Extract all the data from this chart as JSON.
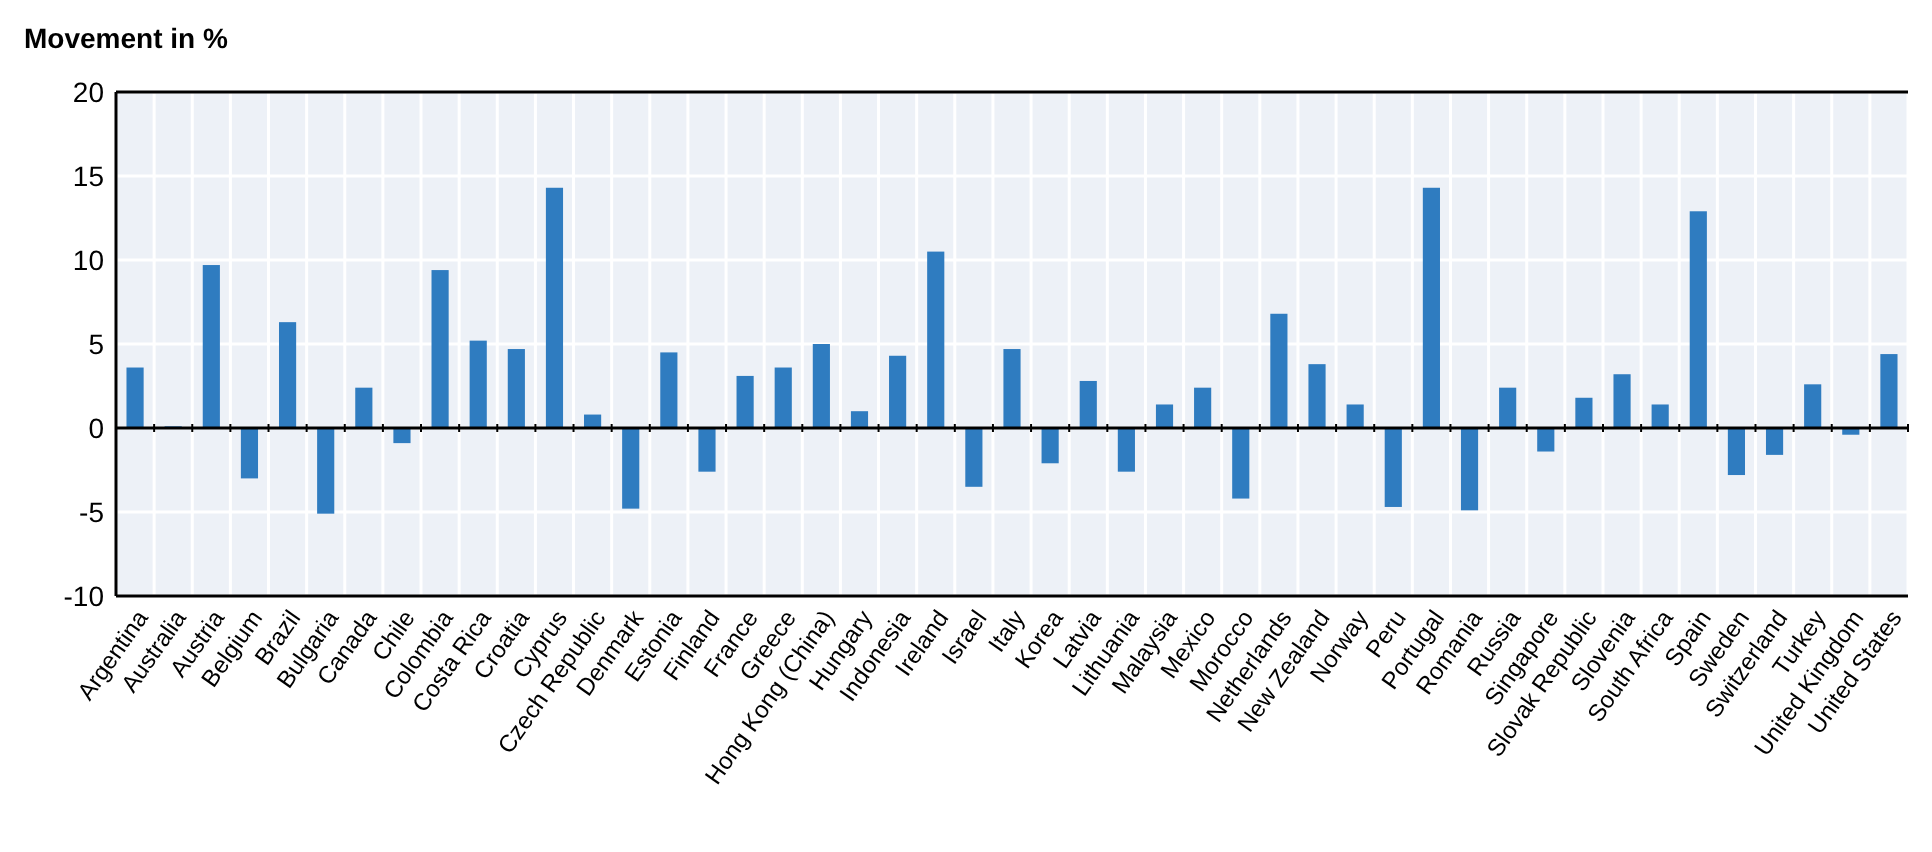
{
  "chart_data": {
    "type": "bar",
    "title": "Movement in %",
    "categories": [
      "Argentina",
      "Australia",
      "Austria",
      "Belgium",
      "Brazil",
      "Bulgaria",
      "Canada",
      "Chile",
      "Colombia",
      "Costa Rica",
      "Croatia",
      "Cyprus",
      "Czech Republic",
      "Denmark",
      "Estonia",
      "Finland",
      "France",
      "Greece",
      "Hong Kong (China)",
      "Hungary",
      "Indonesia",
      "Ireland",
      "Israel",
      "Italy",
      "Korea",
      "Latvia",
      "Lithuania",
      "Malaysia",
      "Mexico",
      "Morocco",
      "Netherlands",
      "New Zealand",
      "Norway",
      "Peru",
      "Portugal",
      "Romania",
      "Russia",
      "Singapore",
      "Slovak Republic",
      "Slovenia",
      "South Africa",
      "Spain",
      "Sweden",
      "Switzerland",
      "Turkey",
      "United Kingdom",
      "United States"
    ],
    "values": [
      3.6,
      0.1,
      9.7,
      -3,
      6.3,
      -5.1,
      2.4,
      -0.9,
      9.4,
      5.2,
      4.7,
      14.3,
      0.8,
      -4.8,
      4.5,
      -2.6,
      3.1,
      3.6,
      5,
      1,
      4.3,
      10.5,
      -3.5,
      4.7,
      -2.1,
      2.8,
      -2.6,
      1.4,
      2.4,
      -4.2,
      6.8,
      3.8,
      1.4,
      -4.7,
      14.3,
      -4.9,
      2.4,
      -1.4,
      1.8,
      3.2,
      1.4,
      12.9,
      -2.8,
      -1.6,
      2.6,
      -0.4,
      4.4
    ],
    "color": "#2f7cc0",
    "ylim": [
      -10,
      20
    ],
    "yticks": [
      -10,
      -5,
      0,
      5,
      10,
      15,
      20
    ],
    "grid": true
  }
}
